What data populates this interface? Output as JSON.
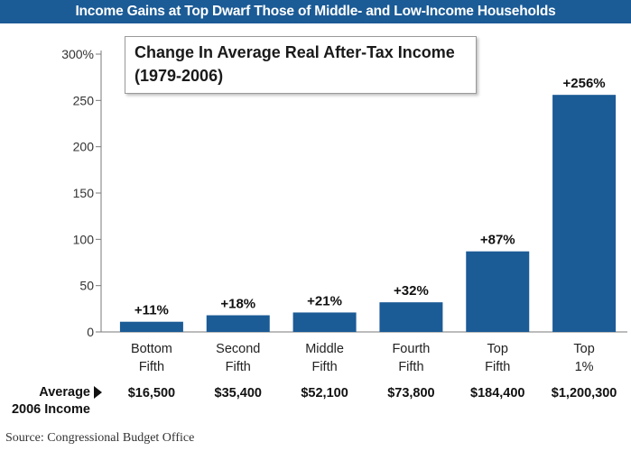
{
  "banner": "Income Gains at Top Dwarf Those of Middle- and Low-Income Households",
  "subtitle": {
    "line1": "Change In Average Real After-Tax Income",
    "line2": "(1979-2006)"
  },
  "footer": {
    "avg_label_line1": "Average",
    "avg_label_line2": "2006 Income",
    "source": "Source: Congressional Budget Office"
  },
  "colors": {
    "bar": "#1b5b96",
    "banner": "#1b5b96"
  },
  "chart_data": {
    "type": "bar",
    "categories": [
      [
        "Bottom",
        "Fifth"
      ],
      [
        "Second",
        "Fifth"
      ],
      [
        "Middle",
        "Fifth"
      ],
      [
        "Fourth",
        "Fifth"
      ],
      [
        "Top",
        "Fifth"
      ],
      [
        "Top",
        "1%"
      ]
    ],
    "values": [
      11,
      18,
      21,
      32,
      87,
      256
    ],
    "data_labels": [
      "+11%",
      "+18%",
      "+21%",
      "+32%",
      "+87%",
      "+256%"
    ],
    "incomes": [
      "$16,500",
      "$35,400",
      "$52,100",
      "$73,800",
      "$184,400",
      "$1,200,300"
    ],
    "yticks": [
      0,
      50,
      100,
      150,
      200,
      250,
      300
    ],
    "ytick_labels": [
      "0",
      "50",
      "100",
      "150",
      "200",
      "250",
      "300%"
    ],
    "ylim": [
      0,
      300
    ],
    "grid": false
  }
}
